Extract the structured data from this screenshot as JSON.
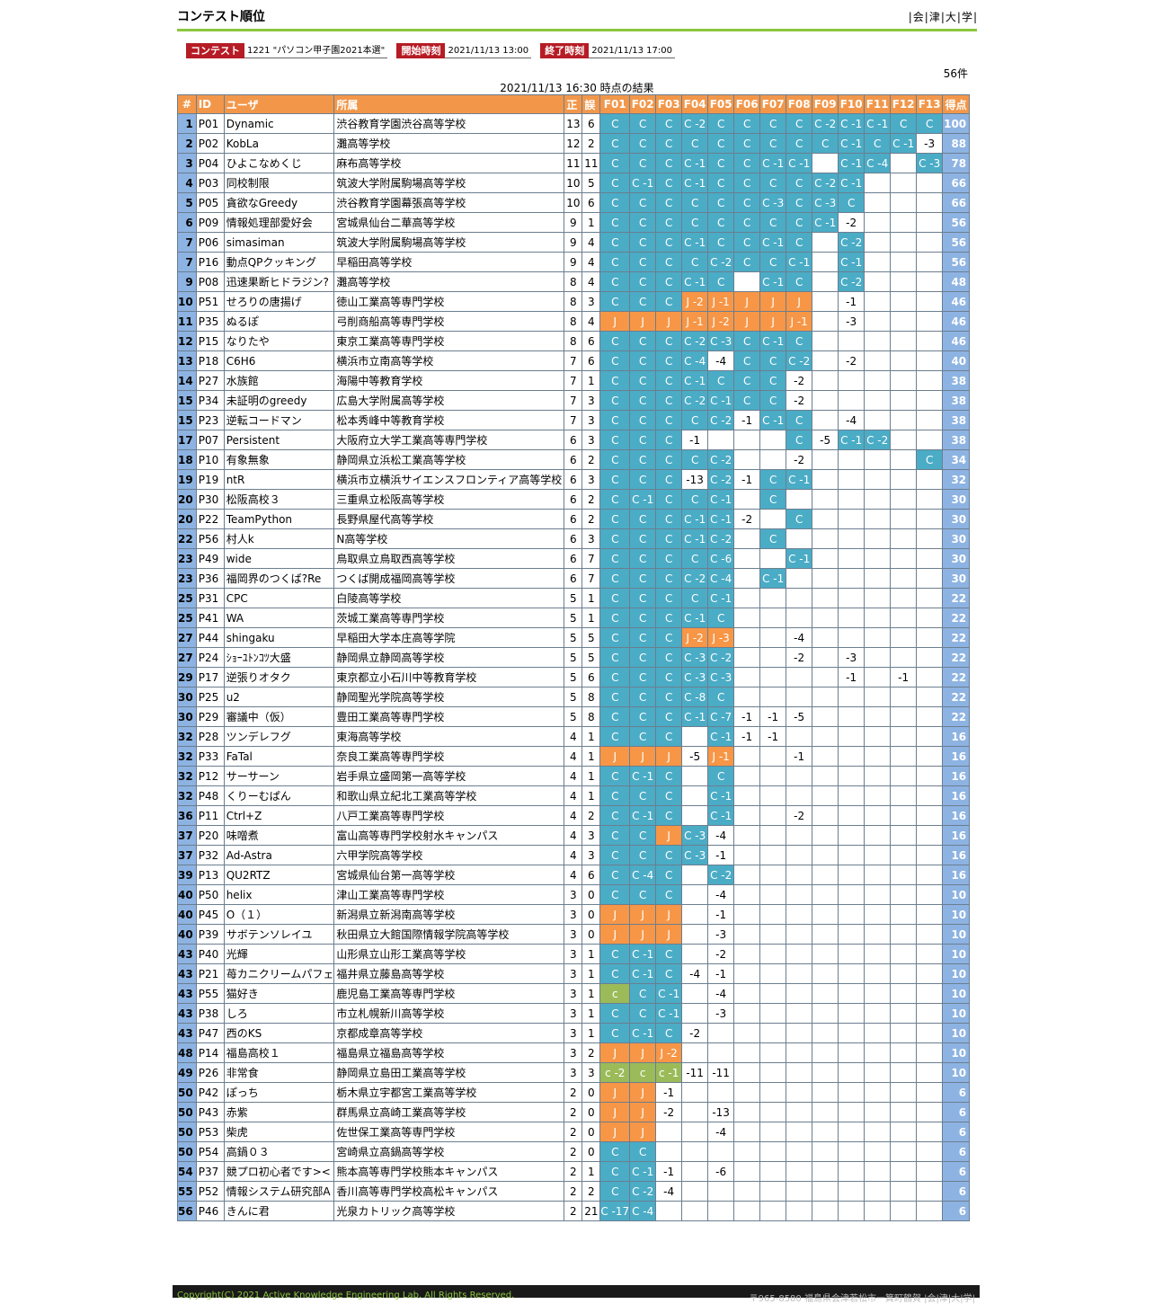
{
  "page_title": "コンテスト順位",
  "links": [
    "会",
    "津",
    "大",
    "学"
  ],
  "info": {
    "contest_label": "コンテスト",
    "contest_value": "1221 \"パソコン甲子園2021本選\"",
    "start_label": "開始時刻",
    "start_value": "2021/11/13 13:00",
    "end_label": "終了時刻",
    "end_value": "2021/11/13 17:00"
  },
  "count": "56件",
  "as_of": "2021/11/13 16:30  時点の結果",
  "headers": [
    "#",
    "ID",
    "ユーザ",
    "所属",
    "正",
    "誤",
    "F01",
    "F02",
    "F03",
    "F04",
    "F05",
    "F06",
    "F07",
    "F08",
    "F09",
    "F10",
    "F11",
    "F12",
    "F13",
    "得点"
  ],
  "status_colors": {
    "C": "#4bacc6",
    "J": "#f79646",
    "c": "#9bbb59",
    "rank_points": "#8db3e2",
    "header": "#f2974a",
    "accent": "#8cc63f"
  },
  "rows": [
    [
      "1",
      "P01",
      "Dynamic",
      "渋谷教育学園渋谷高等学校",
      "13",
      "6",
      "C",
      "C",
      "C",
      "C -2",
      "C",
      "C",
      "C",
      "C",
      "C -2",
      "C -1",
      "C -1",
      "C",
      "C",
      "100"
    ],
    [
      "2",
      "P02",
      "KobLa",
      "灘高等学校",
      "12",
      "2",
      "C",
      "C",
      "C",
      "C",
      "C",
      "C",
      "C",
      "C",
      "C",
      "C -1",
      "C",
      "C -1",
      "-3",
      "88"
    ],
    [
      "3",
      "P04",
      "ひよこなめくじ",
      "麻布高等学校",
      "11",
      "11",
      "C",
      "C",
      "C",
      "C -1",
      "C",
      "C",
      "C -1",
      "C -1",
      "",
      "C -1",
      "C -4",
      "",
      "C -3",
      "78"
    ],
    [
      "4",
      "P03",
      "同校制限",
      "筑波大学附属駒場高等学校",
      "10",
      "5",
      "C",
      "C -1",
      "C",
      "C -1",
      "C",
      "C",
      "C",
      "C",
      "C -2",
      "C -1",
      "",
      "",
      "",
      "66"
    ],
    [
      "5",
      "P05",
      "貪欲なGreedy",
      "渋谷教育学園幕張高等学校",
      "10",
      "6",
      "C",
      "C",
      "C",
      "C",
      "C",
      "C",
      "C -3",
      "C",
      "C -3",
      "C",
      "",
      "",
      "",
      "66"
    ],
    [
      "6",
      "P09",
      "情報処理部愛好会",
      "宮城県仙台二華高等学校",
      "9",
      "1",
      "C",
      "C",
      "C",
      "C",
      "C",
      "C",
      "C",
      "C",
      "C -1",
      "-2",
      "",
      "",
      "",
      "56"
    ],
    [
      "7",
      "P06",
      "simasiman",
      "筑波大学附属駒場高等学校",
      "9",
      "4",
      "C",
      "C",
      "C",
      "C -1",
      "C",
      "C",
      "C -1",
      "C",
      "",
      "C -2",
      "",
      "",
      "",
      "56"
    ],
    [
      "7",
      "P16",
      "動点QPクッキング",
      "早稲田高等学校",
      "9",
      "4",
      "C",
      "C",
      "C",
      "C",
      "C -2",
      "C",
      "C",
      "C -1",
      "",
      "C -1",
      "",
      "",
      "",
      "56"
    ],
    [
      "9",
      "P08",
      "迅速果断ヒドラジン?",
      "灘高等学校",
      "8",
      "4",
      "C",
      "C",
      "C",
      "C -1",
      "C",
      "",
      "C -1",
      "C",
      "",
      "C -2",
      "",
      "",
      "",
      "48"
    ],
    [
      "10",
      "P51",
      "せろりの唐揚げ",
      "徳山工業高等専門学校",
      "8",
      "3",
      "C",
      "C",
      "C",
      "J -2",
      "J -1",
      "J",
      "J",
      "J",
      "",
      "-1",
      "",
      "",
      "",
      "46"
    ],
    [
      "11",
      "P35",
      "ぬるぽ",
      "弓削商船高等専門学校",
      "8",
      "4",
      "J",
      "J",
      "J",
      "J -1",
      "J -2",
      "J",
      "J",
      "J -1",
      "",
      "-3",
      "",
      "",
      "",
      "46"
    ],
    [
      "12",
      "P15",
      "なりたや",
      "東京工業高等専門学校",
      "8",
      "6",
      "C",
      "C",
      "C",
      "C -2",
      "C -3",
      "C",
      "C -1",
      "C",
      "",
      "",
      "",
      "",
      "",
      "46"
    ],
    [
      "13",
      "P18",
      "C6H6",
      "横浜市立南高等学校",
      "7",
      "6",
      "C",
      "C",
      "C",
      "C -4",
      "-4",
      "C",
      "C",
      "C -2",
      "",
      "-2",
      "",
      "",
      "",
      "40"
    ],
    [
      "14",
      "P27",
      "水族館",
      "海陽中等教育学校",
      "7",
      "1",
      "C",
      "C",
      "C",
      "C -1",
      "C",
      "C",
      "C",
      "-2",
      "",
      "",
      "",
      "",
      "",
      "38"
    ],
    [
      "15",
      "P34",
      "未証明のgreedy",
      "広島大学附属高等学校",
      "7",
      "3",
      "C",
      "C",
      "C",
      "C -2",
      "C -1",
      "C",
      "C",
      "-2",
      "",
      "",
      "",
      "",
      "",
      "38"
    ],
    [
      "15",
      "P23",
      "逆転コードマン",
      "松本秀峰中等教育学校",
      "7",
      "3",
      "C",
      "C",
      "C",
      "C",
      "C -2",
      "-1",
      "C -1",
      "C",
      "",
      "-4",
      "",
      "",
      "",
      "38"
    ],
    [
      "17",
      "P07",
      "Persistent",
      "大阪府立大学工業高等専門学校",
      "6",
      "3",
      "C",
      "C",
      "C",
      "-1",
      "",
      "",
      "",
      "C",
      "-5",
      "C -1",
      "C -2",
      "",
      "",
      "38"
    ],
    [
      "18",
      "P10",
      "有象無象",
      "静岡県立浜松工業高等学校",
      "6",
      "2",
      "C",
      "C",
      "C",
      "C",
      "C -2",
      "",
      "",
      "-2",
      "",
      "",
      "",
      "",
      "C",
      "34"
    ],
    [
      "19",
      "P19",
      "ntR",
      "横浜市立横浜サイエンスフロンティア高等学校",
      "6",
      "3",
      "C",
      "C",
      "C",
      "-13",
      "C -2",
      "-1",
      "C",
      "C -1",
      "",
      "",
      "",
      "",
      "",
      "32"
    ],
    [
      "20",
      "P30",
      "松阪高校３",
      "三重県立松阪高等学校",
      "6",
      "2",
      "C",
      "C -1",
      "C",
      "C",
      "C -1",
      "",
      "C",
      "",
      "",
      "",
      "",
      "",
      "",
      "30"
    ],
    [
      "20",
      "P22",
      "TeamPython",
      "長野県屋代高等学校",
      "6",
      "2",
      "C",
      "C",
      "C",
      "C -1",
      "C -1",
      "-2",
      "",
      "C",
      "",
      "",
      "",
      "",
      "",
      "30"
    ],
    [
      "22",
      "P56",
      "村人k",
      "N高等学校",
      "6",
      "3",
      "C",
      "C",
      "C",
      "C -1",
      "C -2",
      "",
      "C",
      "",
      "",
      "",
      "",
      "",
      "",
      "30"
    ],
    [
      "23",
      "P49",
      "wide",
      "鳥取県立鳥取西高等学校",
      "6",
      "7",
      "C",
      "C",
      "C",
      "C",
      "C -6",
      "",
      "",
      "C -1",
      "",
      "",
      "",
      "",
      "",
      "30"
    ],
    [
      "23",
      "P36",
      "福岡界のつくば?Re",
      "つくば開成福岡高等学校",
      "6",
      "7",
      "C",
      "C",
      "C",
      "C -2",
      "C -4",
      "",
      "C -1",
      "",
      "",
      "",
      "",
      "",
      "",
      "30"
    ],
    [
      "25",
      "P31",
      "CPC",
      "白陵高等学校",
      "5",
      "1",
      "C",
      "C",
      "C",
      "C",
      "C -1",
      "",
      "",
      "",
      "",
      "",
      "",
      "",
      "",
      "22"
    ],
    [
      "25",
      "P41",
      "WA",
      "茨城工業高等専門学校",
      "5",
      "1",
      "C",
      "C",
      "C",
      "C -1",
      "C",
      "",
      "",
      "",
      "",
      "",
      "",
      "",
      "",
      "22"
    ],
    [
      "27",
      "P44",
      "shingaku",
      "早稲田大学本庄高等学院",
      "5",
      "5",
      "C",
      "C",
      "C",
      "J -2",
      "J -3",
      "",
      "",
      "-4",
      "",
      "",
      "",
      "",
      "",
      "22"
    ],
    [
      "27",
      "P24",
      "ｼｮｰﾕﾄﾝｺﾂ大盛",
      "静岡県立静岡高等学校",
      "5",
      "5",
      "C",
      "C",
      "C",
      "C -3",
      "C -2",
      "",
      "",
      "-2",
      "",
      "-3",
      "",
      "",
      "",
      "22"
    ],
    [
      "29",
      "P17",
      "逆張りオタク",
      "東京都立小石川中等教育学校",
      "5",
      "6",
      "C",
      "C",
      "C",
      "C -3",
      "C -3",
      "",
      "",
      "",
      "",
      "-1",
      "",
      "-1",
      "",
      "22"
    ],
    [
      "30",
      "P25",
      "u2",
      "静岡聖光学院高等学校",
      "5",
      "8",
      "C",
      "C",
      "C",
      "C -8",
      "C",
      "",
      "",
      "",
      "",
      "",
      "",
      "",
      "",
      "22"
    ],
    [
      "30",
      "P29",
      "審議中（仮）",
      "豊田工業高等専門学校",
      "5",
      "8",
      "C",
      "C",
      "C",
      "C -1",
      "C -7",
      "-1",
      "-1",
      "-5",
      "",
      "",
      "",
      "",
      "",
      "22"
    ],
    [
      "32",
      "P28",
      "ツンデレフグ",
      "東海高等学校",
      "4",
      "1",
      "C",
      "C",
      "C",
      "",
      "C -1",
      "-1",
      "-1",
      "",
      "",
      "",
      "",
      "",
      "",
      "16"
    ],
    [
      "32",
      "P33",
      "FaTal",
      "奈良工業高等専門学校",
      "4",
      "1",
      "J",
      "J",
      "J",
      "-5",
      "J -1",
      "",
      "",
      "-1",
      "",
      "",
      "",
      "",
      "",
      "16"
    ],
    [
      "32",
      "P12",
      "サーサーン",
      "岩手県立盛岡第一高等学校",
      "4",
      "1",
      "C",
      "C -1",
      "C",
      "",
      "C",
      "",
      "",
      "",
      "",
      "",
      "",
      "",
      "",
      "16"
    ],
    [
      "32",
      "P48",
      "くりーむぱん",
      "和歌山県立紀北工業高等学校",
      "4",
      "1",
      "C",
      "C",
      "C",
      "",
      "C -1",
      "",
      "",
      "",
      "",
      "",
      "",
      "",
      "",
      "16"
    ],
    [
      "36",
      "P11",
      "Ctrl+Z",
      "八戸工業高等専門学校",
      "4",
      "2",
      "C",
      "C -1",
      "C",
      "",
      "C -1",
      "",
      "",
      "-2",
      "",
      "",
      "",
      "",
      "",
      "16"
    ],
    [
      "37",
      "P20",
      "味噌煮",
      "富山高等専門学校射水キャンパス",
      "4",
      "3",
      "C",
      "C",
      "J",
      "C -3",
      "-4",
      "",
      "",
      "",
      "",
      "",
      "",
      "",
      "",
      "16"
    ],
    [
      "37",
      "P32",
      "Ad-Astra",
      "六甲学院高等学校",
      "4",
      "3",
      "C",
      "C",
      "C",
      "C -3",
      "-1",
      "",
      "",
      "",
      "",
      "",
      "",
      "",
      "",
      "16"
    ],
    [
      "39",
      "P13",
      "QU2RTZ",
      "宮城県仙台第一高等学校",
      "4",
      "6",
      "C",
      "C -4",
      "C",
      "",
      "C -2",
      "",
      "",
      "",
      "",
      "",
      "",
      "",
      "",
      "16"
    ],
    [
      "40",
      "P50",
      "helix",
      "津山工業高等専門学校",
      "3",
      "0",
      "C",
      "C",
      "C",
      "",
      "-4",
      "",
      "",
      "",
      "",
      "",
      "",
      "",
      "",
      "10"
    ],
    [
      "40",
      "P45",
      "O（１）",
      "新潟県立新潟南高等学校",
      "3",
      "0",
      "J",
      "J",
      "J",
      "",
      "-1",
      "",
      "",
      "",
      "",
      "",
      "",
      "",
      "",
      "10"
    ],
    [
      "40",
      "P39",
      "サボテンソレイユ",
      "秋田県立大館国際情報学院高等学校",
      "3",
      "0",
      "J",
      "J",
      "J",
      "",
      "-3",
      "",
      "",
      "",
      "",
      "",
      "",
      "",
      "",
      "10"
    ],
    [
      "43",
      "P40",
      "光輝",
      "山形県立山形工業高等学校",
      "3",
      "1",
      "C",
      "C -1",
      "C",
      "",
      "-2",
      "",
      "",
      "",
      "",
      "",
      "",
      "",
      "",
      "10"
    ],
    [
      "43",
      "P21",
      "苺カニクリームパフェ",
      "福井県立藤島高等学校",
      "3",
      "1",
      "C",
      "C -1",
      "C",
      "-4",
      "-1",
      "",
      "",
      "",
      "",
      "",
      "",
      "",
      "",
      "10"
    ],
    [
      "43",
      "P55",
      "猫好き",
      "鹿児島工業高等専門学校",
      "3",
      "1",
      "c",
      "C",
      "C -1",
      "",
      "-4",
      "",
      "",
      "",
      "",
      "",
      "",
      "",
      "",
      "10"
    ],
    [
      "43",
      "P38",
      "しろ",
      "市立札幌新川高等学校",
      "3",
      "1",
      "C",
      "C",
      "C -1",
      "",
      "-3",
      "",
      "",
      "",
      "",
      "",
      "",
      "",
      "",
      "10"
    ],
    [
      "43",
      "P47",
      "西のKS",
      "京都成章高等学校",
      "3",
      "1",
      "C",
      "C -1",
      "C",
      "-2",
      "",
      "",
      "",
      "",
      "",
      "",
      "",
      "",
      "",
      "10"
    ],
    [
      "48",
      "P14",
      "福島高校１",
      "福島県立福島高等学校",
      "3",
      "2",
      "J",
      "J",
      "J -2",
      "",
      "",
      "",
      "",
      "",
      "",
      "",
      "",
      "",
      "",
      "10"
    ],
    [
      "49",
      "P26",
      "非常食",
      "静岡県立島田工業高等学校",
      "3",
      "3",
      "c -2",
      "c",
      "c -1",
      "-11",
      "-11",
      "",
      "",
      "",
      "",
      "",
      "",
      "",
      "",
      "10"
    ],
    [
      "50",
      "P42",
      "ぽっち",
      "栃木県立宇都宮工業高等学校",
      "2",
      "0",
      "J",
      "J",
      "-1",
      "",
      "",
      "",
      "",
      "",
      "",
      "",
      "",
      "",
      "",
      "6"
    ],
    [
      "50",
      "P43",
      "赤紫",
      "群馬県立高崎工業高等学校",
      "2",
      "0",
      "J",
      "J",
      "-2",
      "",
      "-13",
      "",
      "",
      "",
      "",
      "",
      "",
      "",
      "",
      "6"
    ],
    [
      "50",
      "P53",
      "柴虎",
      "佐世保工業高等専門学校",
      "2",
      "0",
      "J",
      "J",
      "",
      "",
      "-4",
      "",
      "",
      "",
      "",
      "",
      "",
      "",
      "",
      "6"
    ],
    [
      "50",
      "P54",
      "高鍋０３",
      "宮崎県立高鍋高等学校",
      "2",
      "0",
      "C",
      "C",
      "",
      "",
      "",
      "",
      "",
      "",
      "",
      "",
      "",
      "",
      "",
      "6"
    ],
    [
      "54",
      "P37",
      "競プロ初心者です><",
      "熊本高等専門学校熊本キャンパス",
      "2",
      "1",
      "C",
      "C -1",
      "-1",
      "",
      "-6",
      "",
      "",
      "",
      "",
      "",
      "",
      "",
      "",
      "6"
    ],
    [
      "55",
      "P52",
      "情報システム研究部A",
      "香川高等専門学校高松キャンパス",
      "2",
      "2",
      "C",
      "C -2",
      "-4",
      "",
      "",
      "",
      "",
      "",
      "",
      "",
      "",
      "",
      "",
      "6"
    ],
    [
      "56",
      "P46",
      "きんに君",
      "光泉カトリック高等学校",
      "2",
      "21",
      "C -17",
      "C -4",
      "",
      "",
      "",
      "",
      "",
      "",
      "",
      "",
      "",
      "",
      "",
      "6"
    ]
  ],
  "footer": {
    "copyright": "Copyright(C) 2021 Active Knowledge Engineering Lab. All Rights Reserved.",
    "address": "〒965-8580 福島県会津若松市一箕町鶴賀 |会|津|大|学|"
  }
}
